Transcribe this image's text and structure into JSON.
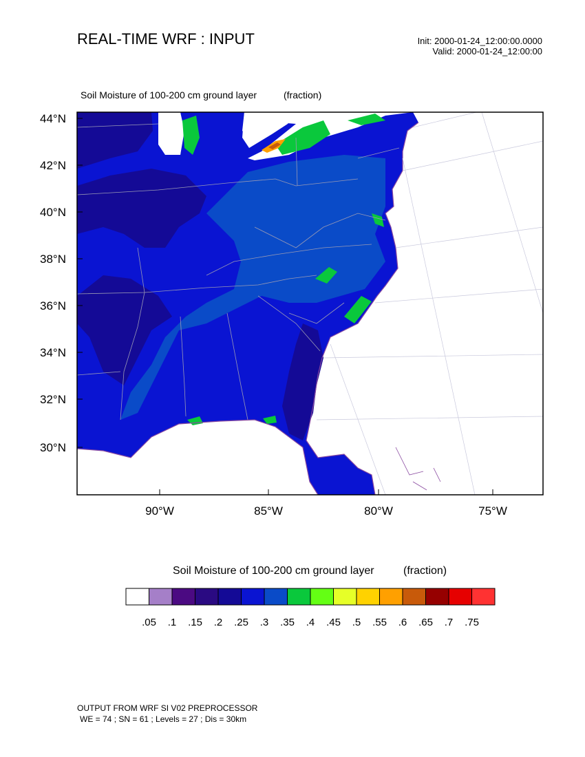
{
  "header": {
    "title": "REAL-TIME WRF : INPUT",
    "init": "Init: 2000-01-24_12:00:00.0000",
    "valid": "Valid: 2000-01-24_12:00:00"
  },
  "field": {
    "title": "Soil Moisture of 100-200 cm ground layer",
    "units": "(fraction)"
  },
  "map": {
    "lat_labels": [
      "44°N",
      "42°N",
      "40°N",
      "38°N",
      "36°N",
      "34°N",
      "32°N",
      "30°N"
    ],
    "lon_labels": [
      "90°W",
      "85°W",
      "80°W",
      "75°W"
    ]
  },
  "legend": {
    "title": "Soil Moisture of 100-200 cm ground layer",
    "units": "(fraction)",
    "colors": [
      "#ffffff",
      "#a57fc8",
      "#4b0a82",
      "#2a0a82",
      "#140a96",
      "#0a14d2",
      "#0a4bc8",
      "#0ac83c",
      "#64ff14",
      "#e6ff28",
      "#ffd200",
      "#ffa000",
      "#c85a0a",
      "#960000",
      "#e60000",
      "#ff3232"
    ],
    "tick_labels": [
      ".05",
      ".1",
      ".15",
      ".2",
      ".25",
      ".3",
      ".35",
      ".4",
      ".45",
      ".5",
      ".55",
      ".6",
      ".65",
      ".7",
      ".75"
    ]
  },
  "footer": {
    "line1": "OUTPUT FROM WRF SI V02 PREPROCESSOR",
    "line2": "WE = 74 ; SN = 61 ; Levels = 27 ; Dis = 30km"
  }
}
